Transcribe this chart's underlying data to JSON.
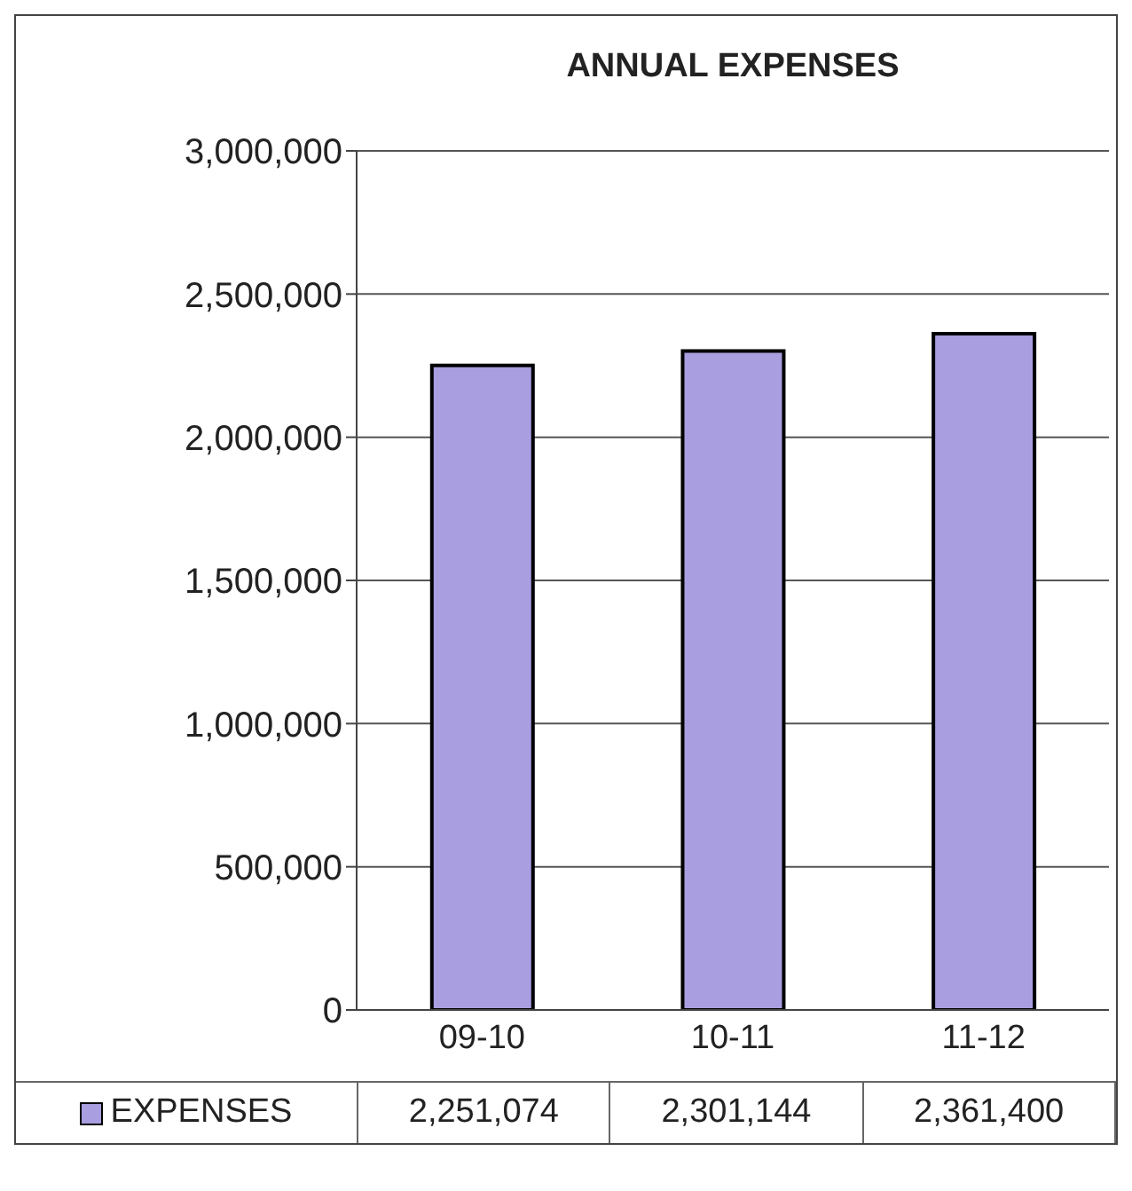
{
  "chart_data": {
    "type": "bar",
    "title": "ANNUAL EXPENSES",
    "categories": [
      "09-10",
      "10-11",
      "11-12"
    ],
    "series": [
      {
        "name": "EXPENSES",
        "color": "#a99ee0",
        "values": [
          2251074,
          2301144,
          2361400
        ],
        "value_labels": [
          "2,251,074",
          "2,301,144",
          "2,361,400"
        ]
      }
    ],
    "ylim": [
      0,
      3000000
    ],
    "yticks": [
      {
        "value": 0,
        "label": "0"
      },
      {
        "value": 500000,
        "label": "500,000"
      },
      {
        "value": 1000000,
        "label": "1,000,000"
      },
      {
        "value": 1500000,
        "label": "1,500,000"
      },
      {
        "value": 2000000,
        "label": "2,000,000"
      },
      {
        "value": 2500000,
        "label": "2,500,000"
      },
      {
        "value": 3000000,
        "label": "3,000,000"
      }
    ],
    "grid": "y",
    "legend": "bottom"
  }
}
